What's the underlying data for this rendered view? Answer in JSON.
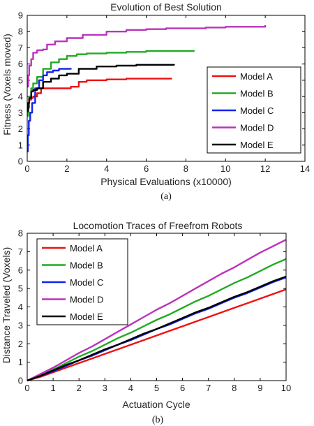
{
  "figure": {
    "caption_a": "(a)",
    "caption_b": "(b)"
  },
  "chart_data": [
    {
      "type": "line",
      "title": "Evolution of Best Solution",
      "xlabel": "Physical Evaluations (x10000)",
      "ylabel": "Fitness (Voxels moved)",
      "xlim": [
        0,
        14
      ],
      "ylim": [
        0,
        9
      ],
      "xticks": [
        0,
        2,
        4,
        6,
        8,
        10,
        12,
        14
      ],
      "yticks": [
        0,
        1,
        2,
        3,
        4,
        5,
        6,
        7,
        8,
        9
      ],
      "grid": false,
      "legend_position": "right",
      "series": [
        {
          "name": "Model A",
          "color": "#ee1111",
          "x": [
            0,
            0.05,
            0.1,
            0.2,
            0.3,
            0.5,
            0.7,
            1.0,
            1.4,
            1.8,
            2.2,
            2.6,
            3.0,
            4.0,
            5.0,
            6.0,
            7.3
          ],
          "y": [
            3.3,
            3.6,
            3.8,
            3.9,
            4.0,
            4.2,
            4.5,
            4.5,
            4.5,
            4.5,
            4.6,
            4.9,
            5.0,
            5.05,
            5.1,
            5.1,
            5.1
          ]
        },
        {
          "name": "Model B",
          "color": "#22aa22",
          "x": [
            0,
            0.05,
            0.1,
            0.2,
            0.3,
            0.5,
            0.8,
            1.2,
            1.6,
            2.0,
            2.5,
            3.0,
            4.0,
            5.0,
            6.0,
            7.0,
            8.4
          ],
          "y": [
            2.8,
            3.3,
            4.0,
            4.5,
            4.8,
            5.2,
            5.7,
            6.1,
            6.3,
            6.5,
            6.6,
            6.65,
            6.7,
            6.75,
            6.8,
            6.8,
            6.85
          ]
        },
        {
          "name": "Model C",
          "color": "#1122ee",
          "x": [
            0,
            0.03,
            0.08,
            0.15,
            0.25,
            0.4,
            0.6,
            0.8,
            1.0,
            1.3,
            1.6,
            1.9,
            2.2
          ],
          "y": [
            0.6,
            1.6,
            2.5,
            3.0,
            3.6,
            4.5,
            5.0,
            5.3,
            5.5,
            5.6,
            5.7,
            5.7,
            5.75
          ]
        },
        {
          "name": "Model D",
          "color": "#bb33bb",
          "x": [
            0,
            0.05,
            0.1,
            0.2,
            0.3,
            0.5,
            0.8,
            1.0,
            1.4,
            2.0,
            2.8,
            4.0,
            5.0,
            6.0,
            7.0,
            8.0,
            9.0,
            10.0,
            11.0,
            12.0
          ],
          "y": [
            4.6,
            5.3,
            5.9,
            6.3,
            6.7,
            6.85,
            6.9,
            7.2,
            7.4,
            7.6,
            7.8,
            8.0,
            8.1,
            8.15,
            8.2,
            8.2,
            8.25,
            8.3,
            8.3,
            8.4
          ]
        },
        {
          "name": "Model E",
          "color": "#000000",
          "x": [
            0,
            0.05,
            0.1,
            0.2,
            0.3,
            0.5,
            0.8,
            1.2,
            1.6,
            2.0,
            2.6,
            3.5,
            4.5,
            5.5,
            6.5,
            7.4
          ],
          "y": [
            3.1,
            3.6,
            3.9,
            4.3,
            4.4,
            4.5,
            4.9,
            5.1,
            5.3,
            5.4,
            5.7,
            5.85,
            5.9,
            5.95,
            5.95,
            6.0
          ]
        }
      ]
    },
    {
      "type": "line",
      "title": "Locomotion Traces of Freefrom Robots",
      "xlabel": "Actuation Cycle",
      "ylabel": "Distance Traveled (Voxels)",
      "xlim": [
        0,
        10
      ],
      "ylim": [
        0,
        8
      ],
      "xticks": [
        0,
        1,
        2,
        3,
        4,
        5,
        6,
        7,
        8,
        9,
        10
      ],
      "yticks": [
        0,
        1,
        2,
        3,
        4,
        5,
        6,
        7,
        8
      ],
      "grid": false,
      "legend_position": "top-left",
      "series": [
        {
          "name": "Model A",
          "color": "#ee1111",
          "x": [
            0,
            0.5,
            1,
            1.5,
            2,
            2.5,
            3,
            3.5,
            4,
            4.5,
            5,
            5.5,
            6,
            6.5,
            7,
            7.5,
            8,
            8.5,
            9,
            9.5,
            10
          ],
          "y": [
            0,
            0.2,
            0.45,
            0.7,
            0.95,
            1.2,
            1.45,
            1.7,
            1.95,
            2.2,
            2.45,
            2.7,
            2.95,
            3.2,
            3.45,
            3.7,
            3.95,
            4.2,
            4.45,
            4.7,
            4.95
          ]
        },
        {
          "name": "Model B",
          "color": "#22aa22",
          "x": [
            0,
            0.5,
            1,
            1.5,
            2,
            2.5,
            3,
            3.5,
            4,
            4.5,
            5,
            5.5,
            6,
            6.5,
            7,
            7.5,
            8,
            8.5,
            9,
            9.5,
            10
          ],
          "y": [
            0,
            0.3,
            0.6,
            0.95,
            1.3,
            1.6,
            1.95,
            2.3,
            2.6,
            2.95,
            3.3,
            3.6,
            3.95,
            4.3,
            4.6,
            4.95,
            5.3,
            5.6,
            5.95,
            6.3,
            6.6
          ]
        },
        {
          "name": "Model C",
          "color": "#1122ee",
          "x": [
            0,
            0.5,
            1,
            1.5,
            2,
            2.5,
            3,
            3.5,
            4,
            4.5,
            5,
            5.5,
            6,
            6.5,
            7,
            7.5,
            8,
            8.5,
            9,
            9.5,
            10
          ],
          "y": [
            0,
            0.25,
            0.5,
            0.8,
            1.1,
            1.35,
            1.65,
            1.95,
            2.2,
            2.5,
            2.8,
            3.05,
            3.35,
            3.65,
            3.9,
            4.2,
            4.5,
            4.75,
            5.05,
            5.35,
            5.6
          ]
        },
        {
          "name": "Model D",
          "color": "#bb33bb",
          "x": [
            0,
            0.5,
            1,
            1.5,
            2,
            2.5,
            3,
            3.5,
            4,
            4.5,
            5,
            5.5,
            6,
            6.5,
            7,
            7.5,
            8,
            8.5,
            9,
            9.5,
            10
          ],
          "y": [
            0,
            0.35,
            0.7,
            1.1,
            1.5,
            1.85,
            2.25,
            2.65,
            3.05,
            3.45,
            3.85,
            4.2,
            4.6,
            5.0,
            5.4,
            5.8,
            6.15,
            6.55,
            6.95,
            7.3,
            7.65
          ]
        },
        {
          "name": "Model E",
          "color": "#000000",
          "x": [
            0,
            0.5,
            1,
            1.5,
            2,
            2.5,
            3,
            3.5,
            4,
            4.5,
            5,
            5.5,
            6,
            6.5,
            7,
            7.5,
            8,
            8.5,
            9,
            9.5,
            10
          ],
          "y": [
            0,
            0.25,
            0.55,
            0.85,
            1.1,
            1.4,
            1.7,
            1.95,
            2.25,
            2.55,
            2.8,
            3.1,
            3.4,
            3.7,
            3.95,
            4.25,
            4.55,
            4.8,
            5.1,
            5.4,
            5.65
          ]
        }
      ]
    }
  ]
}
